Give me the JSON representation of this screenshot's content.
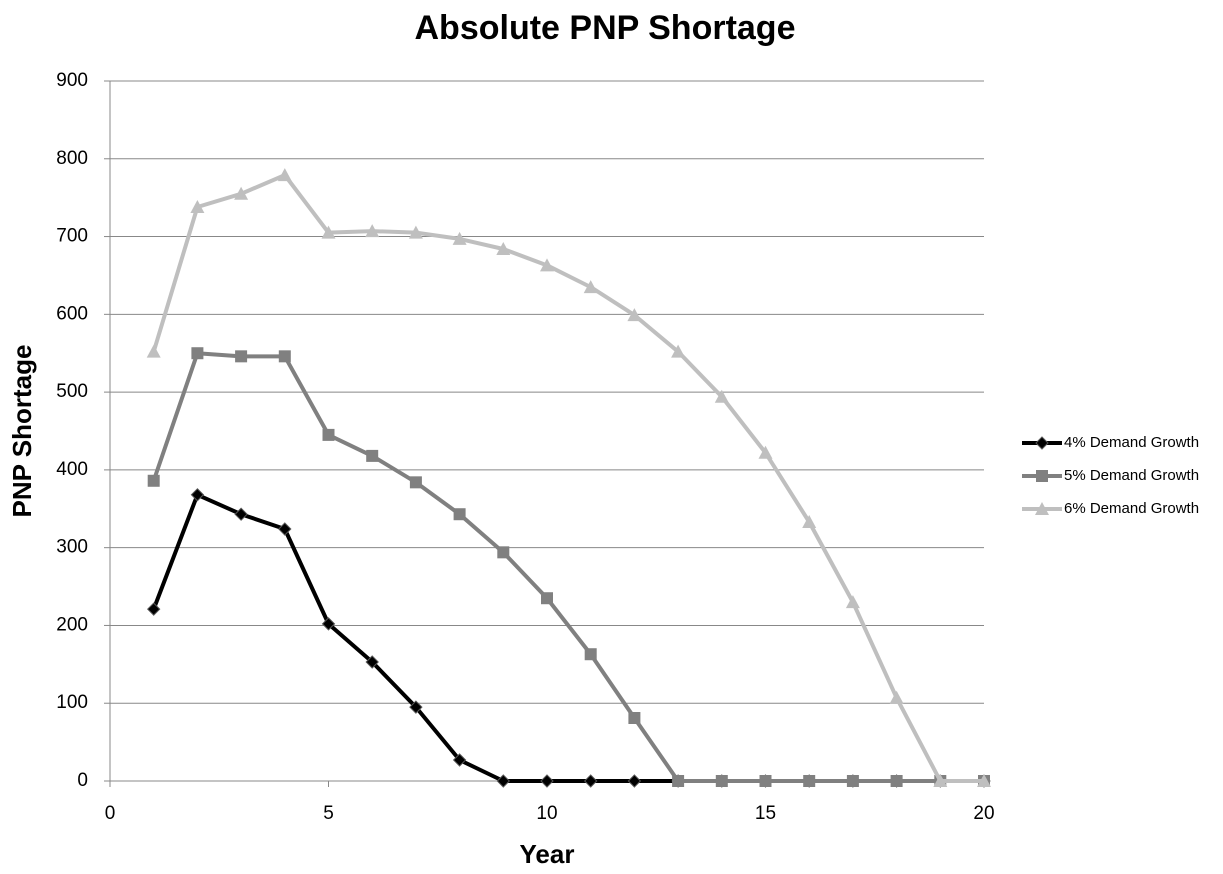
{
  "chart_data": {
    "type": "line",
    "title": "Absolute PNP Shortage",
    "x_label": "Year",
    "y_label": "PNP Shortage",
    "x": [
      1,
      2,
      3,
      4,
      5,
      6,
      7,
      8,
      9,
      10,
      11,
      12,
      13,
      14,
      15,
      16,
      17,
      18,
      19,
      20
    ],
    "series": [
      {
        "name": "4% Demand Growth",
        "color": "#000000",
        "marker": "diamond",
        "values": [
          221,
          368,
          343,
          324,
          202,
          153,
          95,
          27,
          0,
          0,
          0,
          0,
          0,
          0,
          0,
          0,
          0,
          0,
          0,
          0
        ]
      },
      {
        "name": "5% Demand Growth",
        "color": "#808080",
        "marker": "square",
        "values": [
          386,
          550,
          546,
          546,
          445,
          418,
          384,
          343,
          294,
          235,
          163,
          81,
          0,
          0,
          0,
          0,
          0,
          0,
          0,
          0
        ]
      },
      {
        "name": "6% Demand Growth",
        "color": "#bfbfbf",
        "marker": "triangle",
        "values": [
          552,
          738,
          755,
          779,
          705,
          707,
          705,
          697,
          684,
          663,
          635,
          599,
          552,
          494,
          422,
          333,
          230,
          107,
          0,
          0
        ]
      }
    ],
    "xlim": [
      0,
      20
    ],
    "xticks": [
      0,
      5,
      10,
      15,
      20
    ],
    "ylim": [
      0,
      900
    ],
    "yticks": [
      0,
      100,
      200,
      300,
      400,
      500,
      600,
      700,
      800,
      900
    ],
    "grid": true,
    "legend": "right"
  }
}
